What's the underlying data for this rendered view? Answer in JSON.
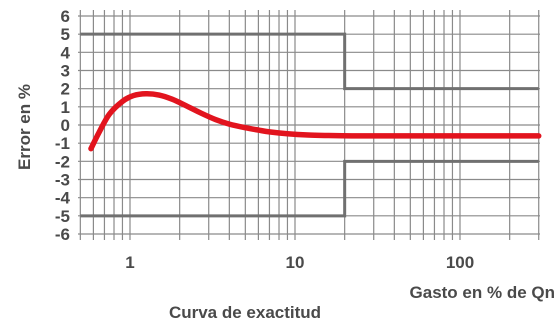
{
  "chart_data": {
    "type": "line",
    "title": "Curva de exactitud",
    "xlabel": "Gasto en % de Qn",
    "ylabel": "Error en %",
    "x_scale": "log",
    "xlim": [
      0.5,
      300
    ],
    "ylim": [
      -6,
      6
    ],
    "grid": true,
    "x_ticks": [
      1,
      10,
      100
    ],
    "x_tick_labels": [
      "1",
      "10",
      "100"
    ],
    "y_ticks": [
      6,
      5,
      4,
      3,
      2,
      1,
      0,
      -1,
      -2,
      -3,
      -4,
      -5,
      -6
    ],
    "y_tick_labels": [
      "6",
      "5",
      "4",
      "3",
      "2",
      "1",
      "0",
      "-1",
      "-2",
      "-3",
      "-4",
      "-5",
      "-6"
    ],
    "series": [
      {
        "role": "accuracy-curve",
        "color": "#e2141e",
        "x": [
          0.58,
          0.65,
          0.75,
          0.9,
          1.05,
          1.25,
          1.5,
          1.8,
          2.2,
          2.7,
          3.3,
          4,
          5,
          6,
          7,
          9,
          12,
          16,
          22,
          30,
          50,
          100,
          200,
          300
        ],
        "y": [
          -1.3,
          -0.4,
          0.6,
          1.3,
          1.62,
          1.72,
          1.65,
          1.42,
          1.05,
          0.65,
          0.3,
          0.05,
          -0.15,
          -0.28,
          -0.38,
          -0.48,
          -0.55,
          -0.58,
          -0.6,
          -0.6,
          -0.6,
          -0.6,
          -0.6,
          -0.6
        ]
      },
      {
        "role": "upper-limit",
        "color": "#707070",
        "x": [
          0.5,
          20,
          20,
          300
        ],
        "y": [
          5,
          5,
          2,
          2
        ]
      },
      {
        "role": "lower-limit",
        "color": "#707070",
        "x": [
          0.5,
          20,
          20,
          300
        ],
        "y": [
          -5,
          -5,
          -2,
          -2
        ]
      }
    ]
  }
}
